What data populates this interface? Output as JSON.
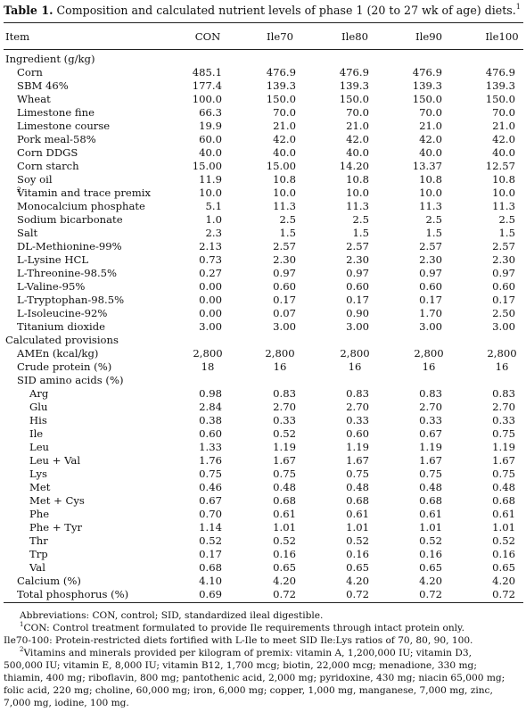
{
  "caption": {
    "label": "Table 1.",
    "text": " Composition and calculated nutrient levels of phase 1 (20 to 27 wk of age) diets.",
    "sup": "1"
  },
  "header": [
    "Item",
    "CON",
    "Ile70",
    "Ile80",
    "Ile90",
    "Ile100"
  ],
  "ingredients_heading": "Ingredient (g/kg)",
  "ingredients": [
    {
      "label": "Corn",
      "v": [
        "485.1",
        "476.9",
        "476.9",
        "476.9",
        "476.9"
      ]
    },
    {
      "label": "SBM 46%",
      "v": [
        "177.4",
        "139.3",
        "139.3",
        "139.3",
        "139.3"
      ]
    },
    {
      "label": "Wheat",
      "v": [
        "100.0",
        "150.0",
        "150.0",
        "150.0",
        "150.0"
      ]
    },
    {
      "label": "Limestone fine",
      "v": [
        "66.3",
        "70.0",
        "70.0",
        "70.0",
        "70.0"
      ]
    },
    {
      "label": "Limestone course",
      "v": [
        "19.9",
        "21.0",
        "21.0",
        "21.0",
        "21.0"
      ]
    },
    {
      "label": "Pork meal-58%",
      "v": [
        "60.0",
        "42.0",
        "42.0",
        "42.0",
        "42.0"
      ]
    },
    {
      "label": "Corn DDGS",
      "v": [
        "40.0",
        "40.0",
        "40.0",
        "40.0",
        "40.0"
      ]
    },
    {
      "label": "Corn starch",
      "v": [
        "15.00",
        "15.00",
        "14.20",
        "13.37",
        "12.57"
      ]
    },
    {
      "label": "Soy oil",
      "v": [
        "11.9",
        "10.8",
        "10.8",
        "10.8",
        "10.8"
      ]
    },
    {
      "label": "Vitamin and trace premix",
      "sup": "2",
      "v": [
        "10.0",
        "10.0",
        "10.0",
        "10.0",
        "10.0"
      ]
    },
    {
      "label": "Monocalcium phosphate",
      "v": [
        "5.1",
        "11.3",
        "11.3",
        "11.3",
        "11.3"
      ]
    },
    {
      "label": "Sodium bicarbonate",
      "v": [
        "1.0",
        "2.5",
        "2.5",
        "2.5",
        "2.5"
      ]
    },
    {
      "label": "Salt",
      "v": [
        "2.3",
        "1.5",
        "1.5",
        "1.5",
        "1.5"
      ]
    },
    {
      "label": "DL-Methionine-99%",
      "v": [
        "2.13",
        "2.57",
        "2.57",
        "2.57",
        "2.57"
      ]
    },
    {
      "label": "L-Lysine HCL",
      "v": [
        "0.73",
        "2.30",
        "2.30",
        "2.30",
        "2.30"
      ]
    },
    {
      "label": "L-Threonine-98.5%",
      "v": [
        "0.27",
        "0.97",
        "0.97",
        "0.97",
        "0.97"
      ]
    },
    {
      "label": "L-Valine-95%",
      "v": [
        "0.00",
        "0.60",
        "0.60",
        "0.60",
        "0.60"
      ]
    },
    {
      "label": "L-Tryptophan-98.5%",
      "v": [
        "0.00",
        "0.17",
        "0.17",
        "0.17",
        "0.17"
      ]
    },
    {
      "label": "L-Isoleucine-92%",
      "v": [
        "0.00",
        "0.07",
        "0.90",
        "1.70",
        "2.50"
      ]
    },
    {
      "label": "Titanium dioxide",
      "v": [
        "3.00",
        "3.00",
        "3.00",
        "3.00",
        "3.00"
      ]
    }
  ],
  "provisions_heading": "Calculated provisions",
  "energy": [
    {
      "label": "AMEn (kcal/kg)",
      "v": [
        "2,800",
        "2,800",
        "2,800",
        "2,800",
        "2,800"
      ]
    },
    {
      "label": "Crude protein (%)",
      "v": [
        "18",
        "16",
        "16",
        "16",
        "16"
      ]
    }
  ],
  "sid_heading": "SID amino acids (%)",
  "amino_acids": [
    {
      "label": "Arg",
      "v": [
        "0.98",
        "0.83",
        "0.83",
        "0.83",
        "0.83"
      ]
    },
    {
      "label": "Glu",
      "v": [
        "2.84",
        "2.70",
        "2.70",
        "2.70",
        "2.70"
      ]
    },
    {
      "label": "His",
      "v": [
        "0.38",
        "0.33",
        "0.33",
        "0.33",
        "0.33"
      ]
    },
    {
      "label": "Ile",
      "v": [
        "0.60",
        "0.52",
        "0.60",
        "0.67",
        "0.75"
      ]
    },
    {
      "label": "Leu",
      "v": [
        "1.33",
        "1.19",
        "1.19",
        "1.19",
        "1.19"
      ]
    },
    {
      "label": "Leu + Val",
      "v": [
        "1.76",
        "1.67",
        "1.67",
        "1.67",
        "1.67"
      ]
    },
    {
      "label": "Lys",
      "v": [
        "0.75",
        "0.75",
        "0.75",
        "0.75",
        "0.75"
      ]
    },
    {
      "label": "Met",
      "v": [
        "0.46",
        "0.48",
        "0.48",
        "0.48",
        "0.48"
      ]
    },
    {
      "label": "Met + Cys",
      "v": [
        "0.67",
        "0.68",
        "0.68",
        "0.68",
        "0.68"
      ]
    },
    {
      "label": "Phe",
      "v": [
        "0.70",
        "0.61",
        "0.61",
        "0.61",
        "0.61"
      ]
    },
    {
      "label": "Phe + Tyr",
      "v": [
        "1.14",
        "1.01",
        "1.01",
        "1.01",
        "1.01"
      ]
    },
    {
      "label": "Thr",
      "v": [
        "0.52",
        "0.52",
        "0.52",
        "0.52",
        "0.52"
      ]
    },
    {
      "label": "Trp",
      "v": [
        "0.17",
        "0.16",
        "0.16",
        "0.16",
        "0.16"
      ]
    },
    {
      "label": "Val",
      "v": [
        "0.68",
        "0.65",
        "0.65",
        "0.65",
        "0.65"
      ]
    }
  ],
  "minerals": [
    {
      "label": "Calcium (%)",
      "v": [
        "4.10",
        "4.20",
        "4.20",
        "4.20",
        "4.20"
      ]
    },
    {
      "label": "Total phosphorus (%)",
      "v": [
        "0.69",
        "0.72",
        "0.72",
        "0.72",
        "0.72"
      ]
    }
  ],
  "footnotes": {
    "abbrev": "Abbreviations: CON, control; SID, standardized ileal digestible.",
    "fn1_sup": "1",
    "fn1_line1": "CON: Control treatment formulated to provide Ile requirements through intact protein only.",
    "fn1_line2": "Ile70-100: Protein-restricted diets fortified with L-Ile to meet SID Ile:Lys ratios of 70, 80, 90, 100.",
    "fn2_sup": "2",
    "fn2_line1": "Vitamins and minerals provided per kilogram of premix: vitamin A, 1,200,000 IU; vitamin D3,",
    "fn2_line2": "500,000 IU; vitamin E, 8,000 IU; vitamin B12, 1,700 mcg; biotin, 22,000 mcg; menadione, 330 mg;",
    "fn2_line3": "thiamin, 400 mg; riboflavin, 800 mg; pantothenic acid, 2,000 mg; pyridoxine, 430 mg; niacin 65,000 mg;",
    "fn2_line4": "folic acid, 220 mg; choline, 60,000 mg; iron, 6,000 mg; copper, 1,000 mg, manganese, 7,000 mg, zinc,",
    "fn2_line5": "7,000 mg, iodine, 100 mg."
  }
}
